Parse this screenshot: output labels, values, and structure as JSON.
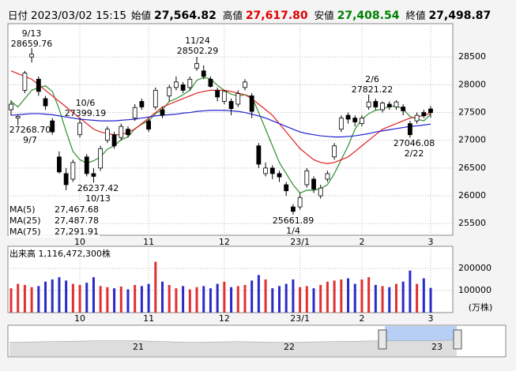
{
  "header": {
    "date_label": "日付",
    "datetime": "2023/03/02 15:15",
    "fields": [
      {
        "label": "始値",
        "value": "27,564.82",
        "color": "#000000"
      },
      {
        "label": "高値",
        "value": "27,617.80",
        "color": "#e00000"
      },
      {
        "label": "安値",
        "value": "27,408.54",
        "color": "#008000"
      },
      {
        "label": "終値",
        "value": "27,498.87",
        "color": "#000000"
      }
    ]
  },
  "chart_data": {
    "type": "candlestick",
    "categories": [
      null,
      null,
      null,
      null,
      null,
      null,
      null,
      null,
      null,
      null,
      "10",
      null,
      null,
      null,
      null,
      null,
      null,
      null,
      null,
      null,
      "11",
      null,
      null,
      null,
      null,
      null,
      null,
      null,
      null,
      null,
      null,
      "12",
      null,
      null,
      null,
      null,
      null,
      null,
      null,
      null,
      null,
      null,
      "23/1",
      null,
      null,
      null,
      null,
      null,
      null,
      null,
      null,
      "2",
      null,
      null,
      null,
      null,
      null,
      null,
      null,
      null,
      null,
      "3"
    ],
    "ohlc": [
      [
        27550,
        27720,
        27450,
        27650
      ],
      [
        27400,
        27450,
        27268.7,
        27430
      ],
      [
        27900,
        28250,
        27850,
        28210
      ],
      [
        28500,
        28659.76,
        28400,
        28550
      ],
      [
        28100,
        28150,
        27800,
        27880
      ],
      [
        27750,
        27800,
        27550,
        27620
      ],
      [
        27350,
        27400,
        27100,
        27150
      ],
      [
        26700,
        26800,
        26400,
        26430
      ],
      [
        26400,
        26500,
        26100,
        26200
      ],
      [
        26300,
        26650,
        26250,
        26600
      ],
      [
        27100,
        27399.19,
        27050,
        27310
      ],
      [
        26700,
        26750,
        26350,
        26400
      ],
      [
        26400,
        26500,
        26237.42,
        26350
      ],
      [
        26500,
        26900,
        26450,
        26850
      ],
      [
        27000,
        27250,
        26950,
        27200
      ],
      [
        27100,
        27150,
        26850,
        26900
      ],
      [
        27050,
        27300,
        27000,
        27250
      ],
      [
        27200,
        27250,
        27050,
        27100
      ],
      [
        27400,
        27650,
        27350,
        27590
      ],
      [
        27700,
        27750,
        27550,
        27600
      ],
      [
        27350,
        27400,
        27150,
        27200
      ],
      [
        27600,
        27950,
        27550,
        27900
      ],
      [
        27550,
        27600,
        27400,
        27450
      ],
      [
        27800,
        28000,
        27700,
        27950
      ],
      [
        27950,
        28150,
        27900,
        28050
      ],
      [
        28000,
        28050,
        27850,
        27900
      ],
      [
        27950,
        28150,
        27900,
        28100
      ],
      [
        28300,
        28502.29,
        28250,
        28380
      ],
      [
        28250,
        28350,
        28100,
        28150
      ],
      [
        28100,
        28150,
        27950,
        27970
      ],
      [
        27900,
        27950,
        27700,
        27780
      ],
      [
        27700,
        27900,
        27650,
        27880
      ],
      [
        27700,
        27750,
        27450,
        27570
      ],
      [
        27650,
        27900,
        27600,
        27840
      ],
      [
        27950,
        28100,
        27900,
        28050
      ],
      [
        27800,
        27850,
        27400,
        27520
      ],
      [
        26900,
        26950,
        26500,
        26570
      ],
      [
        26400,
        26600,
        26350,
        26500
      ],
      [
        26500,
        26550,
        26300,
        26400
      ],
      [
        26400,
        26450,
        26250,
        26340
      ],
      [
        26200,
        26250,
        26000,
        26090
      ],
      [
        25800,
        25850,
        25661.89,
        25720
      ],
      [
        25800,
        26050,
        25750,
        25970
      ],
      [
        26200,
        26500,
        26150,
        26450
      ],
      [
        26300,
        26350,
        26050,
        26120
      ],
      [
        26000,
        26200,
        25950,
        26140
      ],
      [
        26300,
        26450,
        26250,
        26400
      ],
      [
        26700,
        26950,
        26650,
        26900
      ],
      [
        27200,
        27450,
        27150,
        27400
      ],
      [
        27450,
        27500,
        27300,
        27380
      ],
      [
        27400,
        27450,
        27250,
        27330
      ],
      [
        27300,
        27450,
        27250,
        27400
      ],
      [
        27600,
        27821.22,
        27550,
        27690
      ],
      [
        27700,
        27750,
        27550,
        27600
      ],
      [
        27550,
        27700,
        27500,
        27670
      ],
      [
        27650,
        27700,
        27550,
        27600
      ],
      [
        27600,
        27720,
        27550,
        27690
      ],
      [
        27600,
        27650,
        27450,
        27530
      ],
      [
        27300,
        27350,
        27046.08,
        27100
      ],
      [
        27350,
        27500,
        27300,
        27450
      ],
      [
        27500,
        27550,
        27400,
        27440
      ],
      [
        27564.82,
        27617.8,
        27408.54,
        27498.87
      ]
    ],
    "up_color": "#ffffff",
    "down_color": "#000000",
    "series": [
      {
        "name": "MA(5)",
        "color": "#2f8f2f",
        "last_label": "27,467.68",
        "values": [
          27700,
          27600,
          27750,
          27900,
          27950,
          27980,
          27880,
          27560,
          27160,
          26800,
          26650,
          26590,
          26630,
          26700,
          26840,
          26900,
          27010,
          27060,
          27210,
          27290,
          27350,
          27480,
          27550,
          27700,
          27750,
          27820,
          27900,
          28080,
          28130,
          28110,
          27990,
          27900,
          27830,
          27800,
          27820,
          27780,
          27500,
          27200,
          26900,
          26600,
          26400,
          26200,
          26050,
          26100,
          26100,
          26130,
          26200,
          26400,
          26650,
          26900,
          27200,
          27380,
          27480,
          27540,
          27560,
          27610,
          27620,
          27560,
          27430,
          27380,
          27350,
          27467.68
        ]
      },
      {
        "name": "MA(25)",
        "color": "#e02020",
        "last_label": "27,487.78",
        "values": [
          28250,
          28200,
          28150,
          28100,
          28000,
          27900,
          27800,
          27700,
          27600,
          27500,
          27400,
          27300,
          27200,
          27150,
          27120,
          27100,
          27100,
          27150,
          27200,
          27300,
          27400,
          27500,
          27600,
          27650,
          27700,
          27750,
          27800,
          27850,
          27880,
          27900,
          27900,
          27900,
          27880,
          27850,
          27820,
          27750,
          27650,
          27550,
          27450,
          27300,
          27150,
          27000,
          26850,
          26750,
          26650,
          26600,
          26580,
          26600,
          26650,
          26700,
          26800,
          26900,
          27000,
          27100,
          27200,
          27250,
          27300,
          27350,
          27400,
          27420,
          27450,
          27487.78
        ]
      },
      {
        "name": "MA(75)",
        "color": "#2020d0",
        "last_label": "27,291.91",
        "values": [
          27450,
          27460,
          27470,
          27480,
          27480,
          27470,
          27460,
          27440,
          27420,
          27400,
          27380,
          27370,
          27360,
          27350,
          27350,
          27350,
          27360,
          27370,
          27380,
          27400,
          27420,
          27440,
          27450,
          27460,
          27470,
          27490,
          27500,
          27520,
          27530,
          27540,
          27540,
          27540,
          27530,
          27520,
          27500,
          27470,
          27440,
          27400,
          27350,
          27300,
          27250,
          27200,
          27150,
          27120,
          27100,
          27080,
          27070,
          27060,
          27060,
          27070,
          27080,
          27100,
          27120,
          27150,
          27170,
          27190,
          27210,
          27230,
          27250,
          27260,
          27275,
          27291.91
        ]
      }
    ],
    "ylim": [
      25290,
      29100
    ],
    "yticks": [
      25500,
      26000,
      26500,
      27000,
      27500,
      28000,
      28500
    ],
    "grid": true,
    "annotations": [
      [
        "9/13",
        "28659.76"
      ],
      [
        "10/6",
        "27399.19"
      ],
      [
        "27268.70",
        "9/7"
      ],
      [
        "26237.42",
        "10/13"
      ],
      [
        "11/24",
        "28502.29"
      ],
      [
        "25661.89",
        "1/4"
      ],
      [
        "2/6",
        "27821.22"
      ],
      [
        "27046.08",
        "2/22"
      ]
    ],
    "volume": {
      "label": "出来高",
      "total": "1,116,472,300株",
      "unit": "(万株)",
      "up_color": "#e03030",
      "down_color": "#2a2ac8",
      "values": [
        110000,
        130000,
        125000,
        115000,
        120000,
        140000,
        150000,
        160000,
        145000,
        130000,
        125000,
        135000,
        160000,
        120000,
        115000,
        110000,
        118000,
        105000,
        125000,
        120000,
        130000,
        230000,
        140000,
        125000,
        110000,
        120000,
        105000,
        115000,
        120000,
        110000,
        130000,
        140000,
        115000,
        120000,
        125000,
        145000,
        170000,
        150000,
        110000,
        120000,
        130000,
        150000,
        115000,
        120000,
        110000,
        125000,
        140000,
        145000,
        150000,
        155000,
        130000,
        150000,
        160000,
        125000,
        120000,
        115000,
        130000,
        140000,
        190000,
        130000,
        155000,
        111647
      ],
      "ylim": [
        0,
        300000
      ],
      "yticks": [
        100000,
        200000
      ]
    },
    "navigator": {
      "labels": [
        "21",
        "22",
        "23"
      ]
    }
  }
}
